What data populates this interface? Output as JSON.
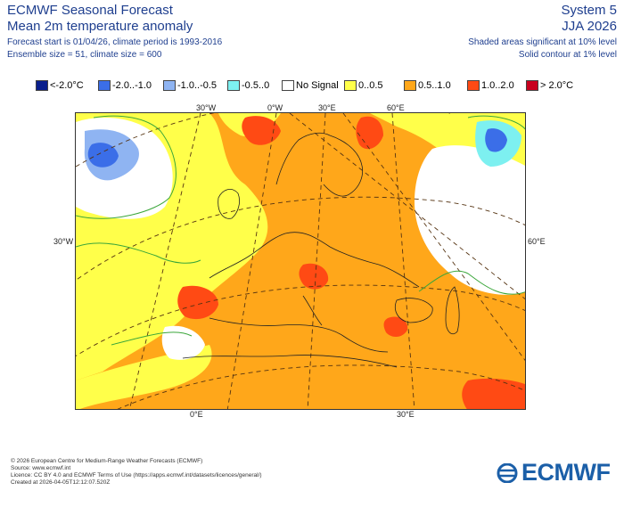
{
  "header": {
    "title": "ECMWF Seasonal Forecast",
    "subtitle": "Mean 2m temperature anomaly",
    "forecast_info": "Forecast start is 01/04/26, climate period is 1993-2016",
    "ensemble_info": "Ensemble size = 51, climate size = 600",
    "system": "System 5",
    "period": "JJA 2026",
    "significance_note": "Shaded areas significant at 10% level",
    "contour_note": "Solid contour at 1% level"
  },
  "legend": {
    "items": [
      {
        "label": "<-2.0°C",
        "color": "#0a1f8c"
      },
      {
        "label": "-2.0..-1.0",
        "color": "#3b6ee8"
      },
      {
        "label": "-1.0..-0.5",
        "color": "#8fb4f2"
      },
      {
        "label": "-0.5..0",
        "color": "#7df0f0"
      },
      {
        "label": "No Signal",
        "color": "#ffffff"
      },
      {
        "label": "0..0.5",
        "color": "#ffff4a"
      },
      {
        "label": "0.5..1.0",
        "color": "#ffa71a"
      },
      {
        "label": "1.0..2.0",
        "color": "#ff4a14"
      },
      {
        "label": "> 2.0°C",
        "color": "#c8001e"
      }
    ]
  },
  "map": {
    "lon_labels_top": [
      "30°W",
      "0°W",
      "30°E",
      "60°E"
    ],
    "lon_labels_bottom": [
      "0°E",
      "30°E"
    ],
    "lat_label_left": "30°W",
    "lat_label_right": "60°E"
  },
  "footer": {
    "line1": "© 2026 European Centre for Medium-Range Weather Forecasts (ECMWF)",
    "line2": "Source: www.ecmwf.int",
    "line3": "Licence: CC BY 4.0 and ECMWF Terms of Use (https://apps.ecmwf.int/datasets/licences/general/)",
    "line4": "Created at 2026-04-05T12:12:07.520Z"
  },
  "logo": {
    "text": "ECMWF",
    "color": "#1b5fa8"
  }
}
